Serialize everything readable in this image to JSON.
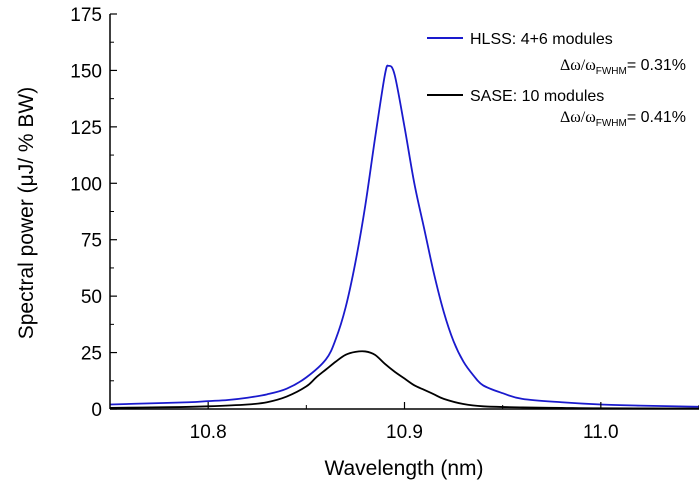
{
  "chart_data": {
    "type": "line",
    "xlabel": "Wavelength  (nm)",
    "ylabel": "Spectral power (μJ/ % BW)",
    "xlim": [
      10.75,
      11.05
    ],
    "ylim": [
      0,
      175
    ],
    "xticks": [
      10.8,
      10.9,
      11.0
    ],
    "xtick_labels": [
      "10.8",
      "10.9",
      "11.0"
    ],
    "yticks": [
      0,
      25,
      50,
      75,
      100,
      125,
      150,
      175
    ],
    "ytick_labels": [
      "0",
      "25",
      "50",
      "75",
      "100",
      "125",
      "150",
      "175"
    ],
    "legend_position": "top-right",
    "series": [
      {
        "name": "HLSS: 4+6 modules",
        "note_prefix": "Δω/ω",
        "note_sub": "FWHM",
        "note_suffix": "= 0.31%",
        "color": "#1a1acd",
        "x": [
          10.75,
          10.77,
          10.79,
          10.8,
          10.81,
          10.82,
          10.83,
          10.84,
          10.85,
          10.86,
          10.865,
          10.87,
          10.875,
          10.88,
          10.885,
          10.89,
          10.892,
          10.895,
          10.9,
          10.905,
          10.91,
          10.915,
          10.92,
          10.925,
          10.93,
          10.935,
          10.94,
          10.95,
          10.96,
          10.98,
          11.0,
          11.02,
          11.05
        ],
        "y": [
          2,
          2.5,
          3,
          3.5,
          4,
          5,
          6.5,
          9,
          14,
          22,
          31,
          45,
          65,
          90,
          120,
          148,
          152,
          148,
          125,
          100,
          80,
          60,
          43,
          30,
          21,
          15,
          10.5,
          7,
          4.5,
          3,
          2,
          1.5,
          1
        ]
      },
      {
        "name": "SASE: 10 modules",
        "note_prefix": "Δω/ω",
        "note_sub": "FWHM",
        "note_suffix": "= 0.41%",
        "color": "#000000",
        "x": [
          10.75,
          10.78,
          10.8,
          10.82,
          10.83,
          10.84,
          10.85,
          10.855,
          10.86,
          10.865,
          10.87,
          10.875,
          10.88,
          10.885,
          10.89,
          10.895,
          10.9,
          10.905,
          10.91,
          10.915,
          10.92,
          10.93,
          10.94,
          10.96,
          10.98,
          11.0,
          11.05
        ],
        "y": [
          0.5,
          0.8,
          1.2,
          2,
          3,
          5.5,
          10,
          14,
          17.5,
          21,
          24,
          25.3,
          25.5,
          24,
          20,
          16.5,
          13.5,
          10.5,
          8.5,
          6.5,
          4.5,
          2.2,
          1.2,
          0.7,
          0.5,
          0.3,
          0.2
        ]
      }
    ]
  }
}
